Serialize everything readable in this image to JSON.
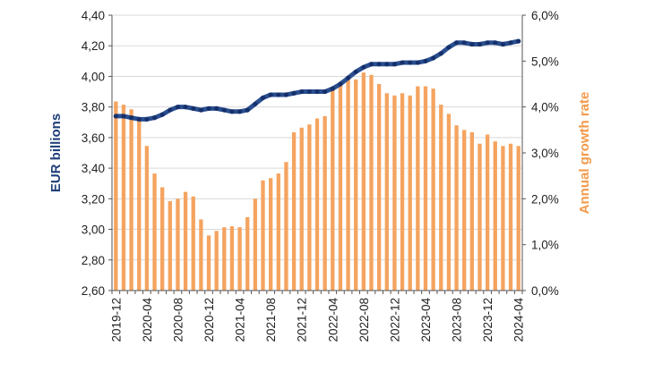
{
  "chart_data": {
    "type": "bar-line-combo",
    "x": [
      "2019-12",
      "2020-01",
      "2020-02",
      "2020-03",
      "2020-04",
      "2020-05",
      "2020-06",
      "2020-07",
      "2020-08",
      "2020-09",
      "2020-10",
      "2020-11",
      "2020-12",
      "2021-01",
      "2021-02",
      "2021-03",
      "2021-04",
      "2021-05",
      "2021-06",
      "2021-07",
      "2021-08",
      "2021-09",
      "2021-10",
      "2021-11",
      "2021-12",
      "2022-01",
      "2022-02",
      "2022-03",
      "2022-04",
      "2022-05",
      "2022-06",
      "2022-07",
      "2022-08",
      "2022-09",
      "2022-10",
      "2022-11",
      "2022-12",
      "2023-01",
      "2023-02",
      "2023-03",
      "2023-04",
      "2023-05",
      "2023-06",
      "2023-07",
      "2023-08",
      "2023-09",
      "2023-10",
      "2023-11",
      "2023-12",
      "2024-01",
      "2024-02",
      "2024-03",
      "2024-04"
    ],
    "xtick_labels": [
      "2019-12",
      "2020-04",
      "2020-08",
      "2020-12",
      "2021-04",
      "2021-08",
      "2021-12",
      "2022-04",
      "2022-08",
      "2022-12",
      "2023-04",
      "2023-08",
      "2023-12",
      "2024-04"
    ],
    "ylabel_left": "EUR billions",
    "ylabel_right": "Annual growth rate",
    "ylim_left": [
      2.6,
      4.4
    ],
    "ylim_right": [
      0,
      6
    ],
    "yticks_left": [
      "2,60",
      "2,80",
      "3,00",
      "3,20",
      "3,40",
      "3,60",
      "3,80",
      "4,00",
      "4,20",
      "4,40"
    ],
    "yticks_right": [
      "0,0%",
      "1,0%",
      "2,0%",
      "3,0%",
      "4,0%",
      "5,0%",
      "6,0%"
    ],
    "grid": true,
    "series": [
      {
        "kind": "line",
        "axis": "left",
        "color": "#2a4f8f",
        "values": [
          3.74,
          3.74,
          3.73,
          3.72,
          3.72,
          3.73,
          3.75,
          3.78,
          3.8,
          3.8,
          3.79,
          3.78,
          3.79,
          3.79,
          3.78,
          3.77,
          3.77,
          3.78,
          3.82,
          3.86,
          3.88,
          3.88,
          3.88,
          3.89,
          3.9,
          3.9,
          3.9,
          3.9,
          3.92,
          3.95,
          3.99,
          4.03,
          4.06,
          4.08,
          4.08,
          4.08,
          4.08,
          4.09,
          4.09,
          4.09,
          4.1,
          4.12,
          4.15,
          4.19,
          4.22,
          4.22,
          4.21,
          4.21,
          4.22,
          4.22,
          4.21,
          4.22,
          4.23
        ]
      },
      {
        "kind": "bar",
        "axis": "right",
        "color": "#f4a460",
        "values": [
          4.12,
          4.05,
          3.95,
          3.75,
          3.15,
          2.55,
          2.25,
          1.95,
          2.0,
          2.15,
          2.05,
          1.55,
          1.2,
          1.3,
          1.38,
          1.4,
          1.38,
          1.6,
          2.0,
          2.4,
          2.45,
          2.55,
          2.8,
          3.45,
          3.55,
          3.62,
          3.75,
          3.8,
          4.4,
          4.55,
          4.6,
          4.6,
          4.75,
          4.7,
          4.5,
          4.3,
          4.25,
          4.3,
          4.25,
          4.45,
          4.45,
          4.4,
          4.05,
          3.85,
          3.6,
          3.5,
          3.45,
          3.2,
          3.4,
          3.25,
          3.15,
          3.2,
          3.15
        ]
      }
    ]
  }
}
